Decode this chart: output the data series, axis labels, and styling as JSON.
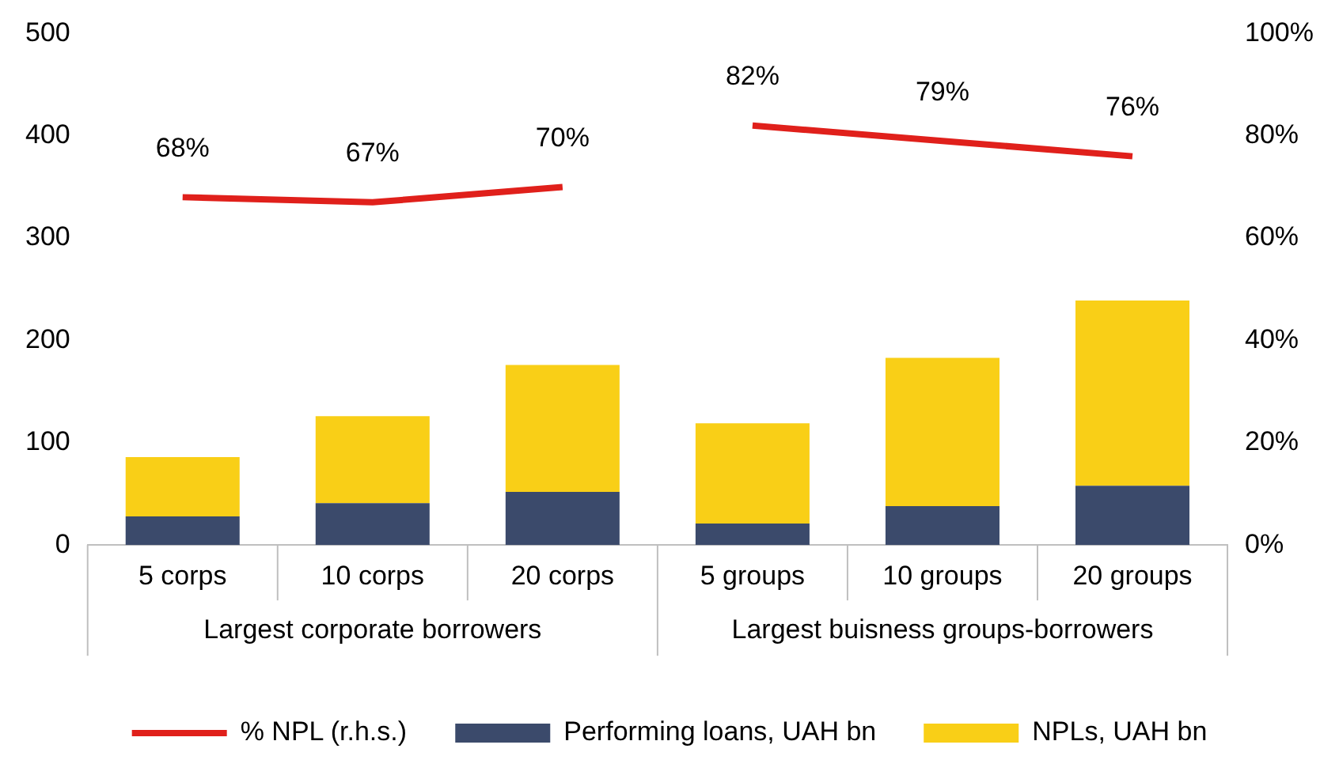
{
  "chart_data": {
    "type": "bar",
    "stacked": true,
    "categories": [
      "5 corps",
      "10 corps",
      "20 corps",
      "5 groups",
      "10 groups",
      "20 groups"
    ],
    "series": [
      {
        "name": "Performing loans, UAH bn",
        "color": "#3b4a6b",
        "values": [
          28,
          41,
          52,
          21,
          38,
          58
        ]
      },
      {
        "name": "NPLs, UAH bn",
        "color": "#f9cf17",
        "values": [
          58,
          85,
          124,
          98,
          145,
          181
        ]
      },
      {
        "name": "% NPL (r.h.s.)",
        "type": "line",
        "axis": "y2",
        "color": "#e0201b",
        "values": [
          68,
          67,
          70,
          null,
          null,
          null
        ],
        "value_labels": [
          "68%",
          "67%",
          "70%",
          null,
          null,
          null
        ]
      },
      {
        "type": "line",
        "axis": "y2",
        "color": "#e0201b",
        "values": [
          null,
          null,
          null,
          82,
          79,
          76
        ],
        "value_labels": [
          null,
          null,
          null,
          "82%",
          "79%",
          "76%"
        ]
      }
    ],
    "ylim": [
      0,
      500
    ],
    "yticks": [
      0,
      100,
      200,
      300,
      400,
      500
    ],
    "y2lim": [
      0,
      100
    ],
    "y2ticks": [
      {
        "value": 0,
        "label": "0%"
      },
      {
        "value": 20,
        "label": "20%"
      },
      {
        "value": 40,
        "label": "40%"
      },
      {
        "value": 60,
        "label": "60%"
      },
      {
        "value": 80,
        "label": "80%"
      },
      {
        "value": 100,
        "label": "100%"
      }
    ],
    "annotations": [
      "Largest corporate borrowers",
      "Largest buisness groups-borrowers"
    ],
    "grid": false,
    "legend": "bottom",
    "marker": "none",
    "line_style": "solid"
  }
}
